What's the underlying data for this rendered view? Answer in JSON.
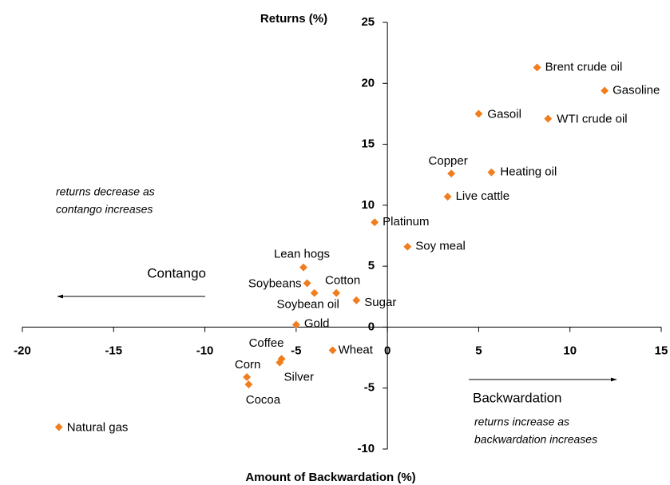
{
  "chart_data": {
    "type": "scatter",
    "xlabel": "Amount of Backwardation (%)",
    "ylabel": "Returns (%)",
    "annotations": {
      "contango": "Contango",
      "backwardation": "Backwardation",
      "contango_note": [
        "returns decrease as",
        "contango increases"
      ],
      "backwardation_note": [
        "returns increase as",
        "backwardation increases"
      ]
    },
    "series": [
      {
        "color": "#f07d1e",
        "labels": [
          "Brent crude oil",
          "Gasoline",
          "Gasoil",
          "WTI crude oil",
          "Copper",
          "Heating oil",
          "Live cattle",
          "Platinum",
          "Soy meal",
          "Lean hogs",
          "Soybeans",
          "Soybean oil",
          "Cotton",
          "Sugar",
          "Gold",
          "Wheat",
          "Coffee",
          "Silver",
          "Corn",
          "Cocoa",
          "Natural gas"
        ],
        "x": [
          8.2,
          11.9,
          5.0,
          8.8,
          3.5,
          5.7,
          3.3,
          -0.7,
          1.1,
          -4.6,
          -4.4,
          -4.0,
          -2.8,
          -1.7,
          -5.0,
          -3.0,
          -5.8,
          -5.9,
          -7.7,
          -7.6,
          -18.0
        ],
        "values": [
          21.3,
          19.4,
          17.5,
          17.1,
          12.6,
          12.7,
          10.7,
          8.6,
          6.6,
          4.9,
          3.6,
          2.8,
          2.8,
          2.2,
          0.2,
          -1.9,
          -2.6,
          -2.9,
          -4.1,
          -4.7,
          -8.2
        ]
      }
    ],
    "xlim": [
      -20,
      15
    ],
    "xticks": [
      -20,
      -15,
      -10,
      -5,
      0,
      5,
      10,
      15
    ],
    "ylim": [
      -10,
      25
    ],
    "yticks": [
      -10,
      -5,
      0,
      5,
      10,
      15,
      20,
      25
    ]
  }
}
